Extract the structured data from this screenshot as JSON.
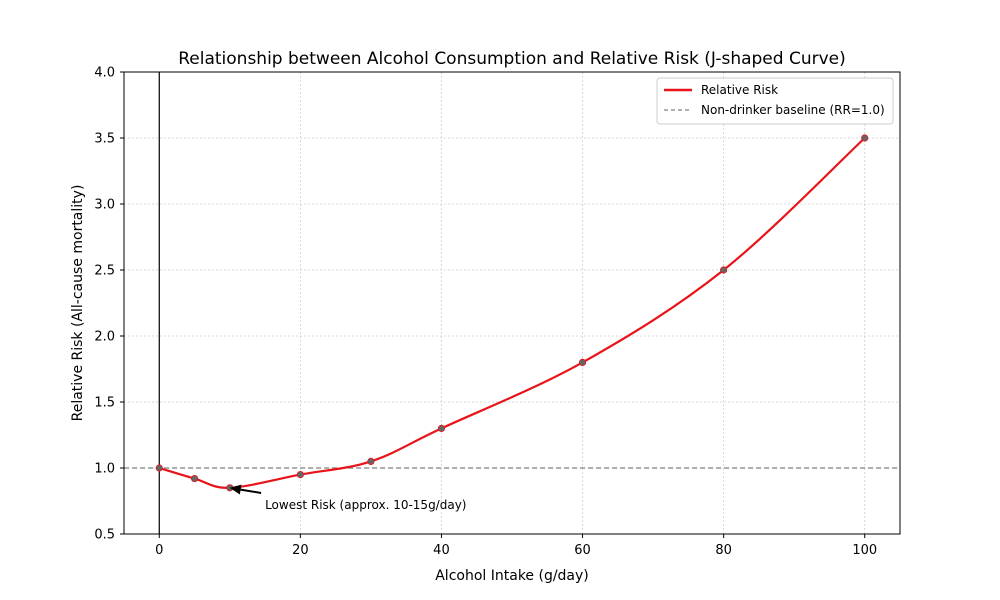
{
  "chart_data": {
    "type": "line",
    "title": "Relationship between Alcohol Consumption and Relative Risk (J-shaped Curve)",
    "xlabel": "Alcohol Intake (g/day)",
    "ylabel": "Relative Risk (All-cause mortality)",
    "xlim": [
      -5,
      105
    ],
    "ylim": [
      0.5,
      4.0
    ],
    "xticks": [
      0,
      20,
      40,
      60,
      80,
      100
    ],
    "yticks": [
      0.5,
      1.0,
      1.5,
      2.0,
      2.5,
      3.0,
      3.5,
      4.0
    ],
    "ytick_labels": [
      "0.5",
      "1.0",
      "1.5",
      "2.0",
      "2.5",
      "3.0",
      "3.5",
      "4.0"
    ],
    "grid": true,
    "legend_position": "top-right",
    "series": [
      {
        "name": "Relative Risk",
        "color": "#e8141a",
        "marker_color": "#666666",
        "x": [
          0,
          5,
          10,
          20,
          30,
          40,
          60,
          80,
          100
        ],
        "y": [
          1.0,
          0.92,
          0.85,
          0.95,
          1.05,
          1.3,
          1.8,
          2.5,
          3.5
        ]
      }
    ],
    "baseline": {
      "name": "Non-drinker baseline (RR=1.0)",
      "y": 1.0,
      "color": "#808080"
    },
    "annotation": {
      "text": "Lowest Risk (approx. 10-15g/day)",
      "point": [
        10,
        0.85
      ],
      "text_at": [
        15,
        0.72
      ]
    }
  }
}
